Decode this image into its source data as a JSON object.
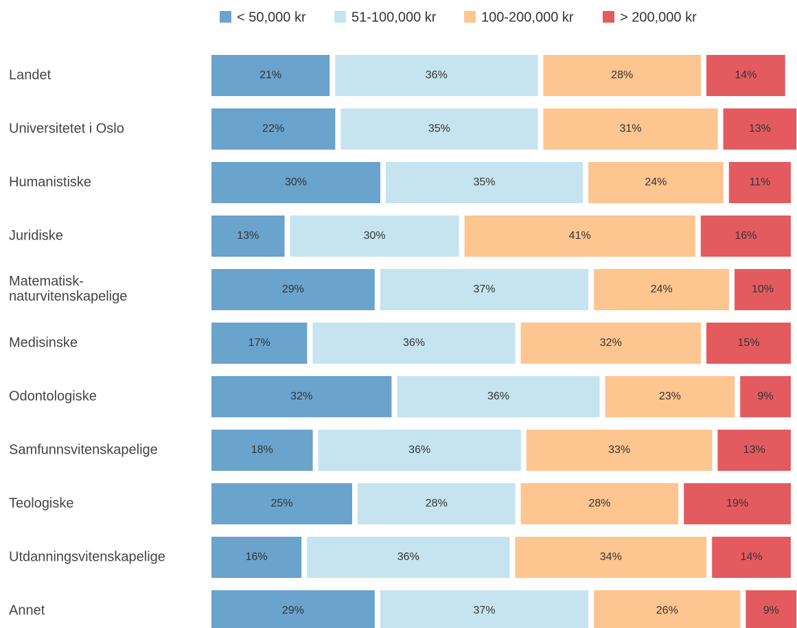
{
  "chart_data": {
    "type": "stacked_barh",
    "categories": [
      "Landet",
      "Universitetet i Oslo",
      "Humanistiske",
      "Juridiske",
      "Matematisk-\nnaturvitenskapelige",
      "Medisinske",
      "Odontologiske",
      "Samfunnsvitenskapelige",
      "Teologiske",
      "Utdanningsvitenskapelige",
      "Annet"
    ],
    "series": [
      {
        "name": "< 50,000 kr",
        "color": "#6aa3cc",
        "values": [
          21,
          22,
          30,
          13,
          29,
          17,
          32,
          18,
          25,
          16,
          29
        ],
        "value_labels": [
          "21%",
          "22%",
          "30%",
          "13%",
          "29%",
          "17%",
          "32%",
          "18%",
          "25%",
          "16%",
          "29%"
        ]
      },
      {
        "name": "51-100,000 kr",
        "color": "#c5e4ef",
        "values": [
          36,
          35,
          35,
          30,
          37,
          36,
          36,
          36,
          28,
          36,
          37
        ],
        "value_labels": [
          "36%",
          "35%",
          "35%",
          "30%",
          "37%",
          "36%",
          "36%",
          "36%",
          "28%",
          "36%",
          "37%"
        ]
      },
      {
        "name": "100-200,000 kr",
        "color": "#fdc590",
        "values": [
          28,
          31,
          24,
          41,
          24,
          32,
          23,
          33,
          28,
          34,
          26
        ],
        "value_labels": [
          "28%",
          "31%",
          "24%",
          "41%",
          "24%",
          "32%",
          "23%",
          "33%",
          "28%",
          "34%",
          "26%"
        ]
      },
      {
        "name": "> 200,000 kr",
        "color": "#e35b5e",
        "values": [
          14,
          13,
          11,
          16,
          10,
          15,
          9,
          13,
          19,
          14,
          9
        ],
        "value_labels": [
          "14%",
          "13%",
          "11%",
          "16%",
          "10%",
          "15%",
          "9%",
          "13%",
          "19%",
          "14%",
          "9%"
        ]
      }
    ]
  }
}
